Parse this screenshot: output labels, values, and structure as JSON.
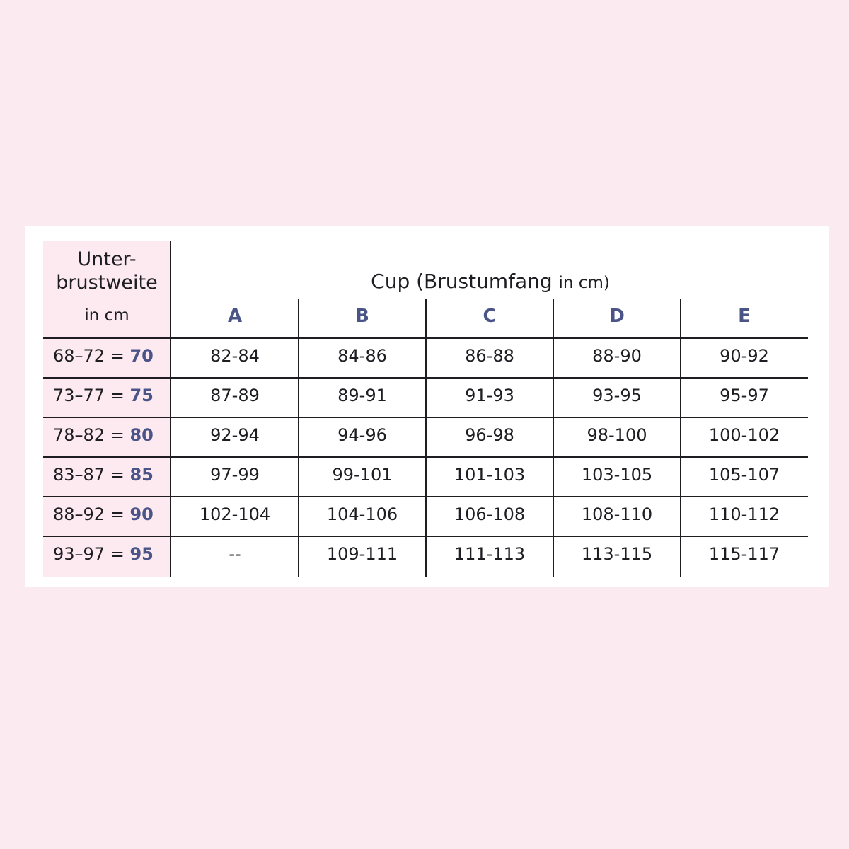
{
  "table": {
    "header": {
      "title_line1": "Unter-",
      "title_line2": "brustweite",
      "unit": "in cm",
      "cup_title": "Cup (Brustumfang",
      "cup_unit": "in cm)"
    },
    "cups": [
      "A",
      "B",
      "C",
      "D",
      "E"
    ],
    "rows": [
      {
        "range": "68–72",
        "eq": " = ",
        "size": "70",
        "values": [
          "82-84",
          "84-86",
          "86-88",
          "88-90",
          "90-92"
        ]
      },
      {
        "range": "73–77",
        "eq": " = ",
        "size": "75",
        "values": [
          "87-89",
          "89-91",
          "91-93",
          "93-95",
          "95-97"
        ]
      },
      {
        "range": "78–82",
        "eq": " = ",
        "size": "80",
        "values": [
          "92-94",
          "94-96",
          "96-98",
          "98-100",
          "100-102"
        ]
      },
      {
        "range": "83–87",
        "eq": " = ",
        "size": "85",
        "values": [
          "97-99",
          "99-101",
          "101-103",
          "103-105",
          "105-107"
        ]
      },
      {
        "range": "88–92",
        "eq": " = ",
        "size": "90",
        "values": [
          "102-104",
          "104-106",
          "106-108",
          "108-110",
          "110-112"
        ]
      },
      {
        "range": "93–97",
        "eq": " = ",
        "size": "95",
        "values": [
          "--",
          "109-111",
          "111-113",
          "113-115",
          "115-117"
        ]
      }
    ]
  },
  "colors": {
    "background": "#fceaf1",
    "card": "#ffffff",
    "row_header_fill": "#fdeaf1",
    "accent": "#4b5487",
    "text": "#1d1d22"
  }
}
